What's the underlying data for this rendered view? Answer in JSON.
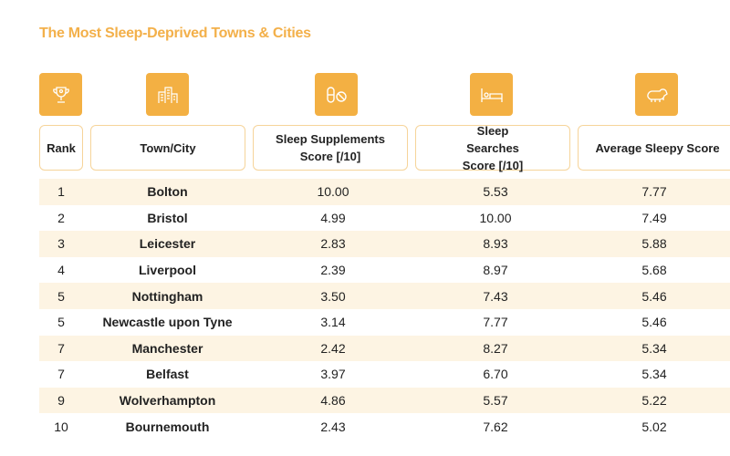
{
  "title": "The Most Sleep-Deprived Towns & Cities",
  "columns": [
    {
      "label": "Rank",
      "icon": "trophy-icon"
    },
    {
      "label": "Town/City",
      "icon": "buildings-icon"
    },
    {
      "label": "Sleep Supplements Score [/10]",
      "icon": "pills-icon"
    },
    {
      "label": "Sleep Searches Score [/10]",
      "icon": "bed-icon"
    },
    {
      "label": "Average Sleepy Score",
      "icon": "sheep-icon"
    }
  ],
  "colors": {
    "accent": "#f3b043",
    "stripe": "#fdf4e3",
    "border": "#f6d49a"
  },
  "rows": [
    [
      "1",
      "Bolton",
      "10.00",
      "5.53",
      "7.77"
    ],
    [
      "2",
      "Bristol",
      "4.99",
      "10.00",
      "7.49"
    ],
    [
      "3",
      "Leicester",
      "2.83",
      "8.93",
      "5.88"
    ],
    [
      "4",
      "Liverpool",
      "2.39",
      "8.97",
      "5.68"
    ],
    [
      "5",
      "Nottingham",
      "3.50",
      "7.43",
      "5.46"
    ],
    [
      "5",
      "Newcastle upon Tyne",
      "3.14",
      "7.77",
      "5.46"
    ],
    [
      "7",
      "Manchester",
      "2.42",
      "8.27",
      "5.34"
    ],
    [
      "7",
      "Belfast",
      "3.97",
      "6.70",
      "5.34"
    ],
    [
      "9",
      "Wolverhampton",
      "4.86",
      "5.57",
      "5.22"
    ],
    [
      "10",
      "Bournemouth",
      "2.43",
      "7.62",
      "5.02"
    ]
  ]
}
